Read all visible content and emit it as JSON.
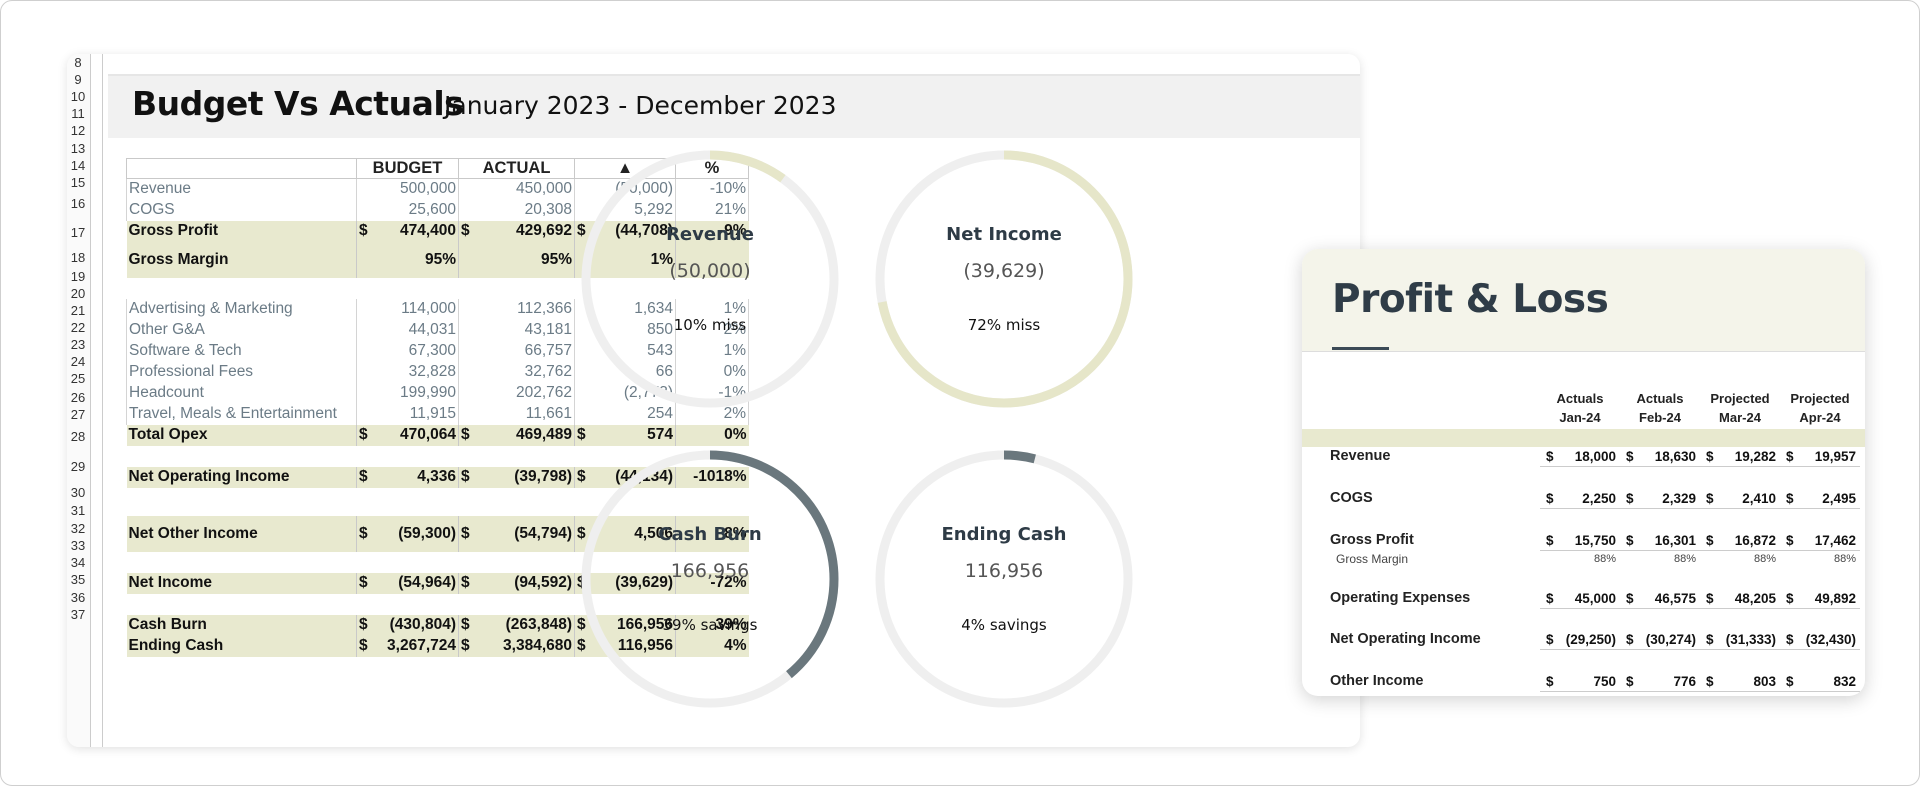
{
  "row_numbers": [
    "8",
    "9",
    "10",
    "11",
    "12",
    "13",
    "14",
    "15",
    "16",
    "17",
    "18",
    "19",
    "20",
    "21",
    "22",
    "23",
    "24",
    "25",
    "26",
    "27",
    "28",
    "29",
    "30",
    "31",
    "32",
    "33",
    "34",
    "35",
    "36",
    "37"
  ],
  "title": "Budget Vs Actuals",
  "subtitle": "January 2023 - December 2023",
  "table": {
    "headers": [
      "BUDGET",
      "ACTUAL",
      "▲",
      "%"
    ],
    "rows": [
      {
        "type": "plain",
        "label": "Revenue",
        "cells": [
          "500,000",
          "450,000",
          "(50,000)",
          "-10%"
        ]
      },
      {
        "type": "plain",
        "label": "COGS",
        "cells": [
          "25,600",
          "20,308",
          "5,292",
          "21%"
        ]
      },
      {
        "type": "bold",
        "label": "Gross Profit",
        "dollar": true,
        "cells": [
          "474,400",
          "429,692",
          "(44,708)",
          "-9%"
        ]
      },
      {
        "type": "bold",
        "label": "Gross Margin",
        "cells": [
          "95%",
          "95%",
          "1%",
          ""
        ]
      },
      {
        "type": "gap"
      },
      {
        "type": "plain",
        "label": "Advertising & Marketing",
        "cells": [
          "114,000",
          "112,366",
          "1,634",
          "1%"
        ]
      },
      {
        "type": "plain",
        "label": "Other G&A",
        "cells": [
          "44,031",
          "43,181",
          "850",
          "2%"
        ]
      },
      {
        "type": "plain",
        "label": "Software & Tech",
        "cells": [
          "67,300",
          "66,757",
          "543",
          "1%"
        ]
      },
      {
        "type": "plain",
        "label": "Professional Fees",
        "cells": [
          "32,828",
          "32,762",
          "66",
          "0%"
        ]
      },
      {
        "type": "plain",
        "label": "Headcount",
        "cells": [
          "199,990",
          "202,762",
          "(2,773)",
          "-1%"
        ]
      },
      {
        "type": "plain",
        "label": "Travel, Meals & Entertainment",
        "cells": [
          "11,915",
          "11,661",
          "254",
          "2%"
        ]
      },
      {
        "type": "bold",
        "label": "Total Opex",
        "dollar": true,
        "cells": [
          "470,064",
          "469,489",
          "574",
          "0%"
        ]
      },
      {
        "type": "gap"
      },
      {
        "type": "bold",
        "label": "Net Operating Income",
        "dollar": true,
        "cells": [
          "4,336",
          "(39,798)",
          "(44,134)",
          "-1018%"
        ]
      },
      {
        "type": "gapt"
      },
      {
        "type": "bold",
        "label": "Net Other Income",
        "dollar": true,
        "cells": [
          "(59,300)",
          "(54,794)",
          "4,506",
          "8%"
        ]
      },
      {
        "type": "gap"
      },
      {
        "type": "bold",
        "label": "Net Income",
        "dollar": true,
        "cells": [
          "(54,964)",
          "(94,592)",
          "(39,629)",
          "-72%"
        ]
      },
      {
        "type": "gap"
      },
      {
        "type": "bold",
        "label": "Cash Burn",
        "dollar": true,
        "cells": [
          "(430,804)",
          "(263,848)",
          "166,956",
          "39%"
        ]
      },
      {
        "type": "bold",
        "label": "Ending Cash",
        "dollar": true,
        "cells": [
          "3,267,724",
          "3,384,680",
          "116,956",
          "4%"
        ]
      }
    ],
    "dollar_sign": "$"
  },
  "rings": [
    {
      "label": "Revenue",
      "value": "(50,000)",
      "caption": "10% miss",
      "fraction": 0.1,
      "color": "#e6e6c9"
    },
    {
      "label": "Net Income",
      "value": "(39,629)",
      "caption": "72% miss",
      "fraction": 0.72,
      "color": "#e6e6c9"
    },
    {
      "label": "Cash Burn",
      "value": "166,956",
      "caption": "39% savings",
      "fraction": 0.39,
      "color": "#6a777d"
    },
    {
      "label": "Ending Cash",
      "value": "116,956",
      "caption": "4% savings",
      "fraction": 0.04,
      "color": "#6a777d"
    }
  ],
  "profit_loss": {
    "title": "Profit & Loss",
    "columns": [
      {
        "line1": "Actuals",
        "line2": "Jan-24"
      },
      {
        "line1": "Actuals",
        "line2": "Feb-24"
      },
      {
        "line1": "Projected",
        "line2": "Mar-24"
      },
      {
        "line1": "Projected",
        "line2": "Apr-24"
      }
    ],
    "rows": [
      {
        "label": "Revenue",
        "cells": [
          "18,000",
          "18,630",
          "19,282",
          "19,957"
        ]
      },
      {
        "label": "COGS",
        "cells": [
          "2,250",
          "2,329",
          "2,410",
          "2,495"
        ]
      },
      {
        "label": "Gross Profit",
        "cells": [
          "15,750",
          "16,301",
          "16,872",
          "17,462"
        ]
      },
      {
        "label": "Gross Margin",
        "small": true,
        "cells": [
          "88%",
          "88%",
          "88%",
          "88%"
        ]
      },
      {
        "label": "Operating Expenses",
        "cells": [
          "45,000",
          "46,575",
          "48,205",
          "49,892"
        ]
      },
      {
        "label": "Net Operating Income",
        "cells": [
          "(29,250)",
          "(30,274)",
          "(31,333)",
          "(32,430)"
        ]
      },
      {
        "label": "Other Income",
        "cells": [
          "750",
          "776",
          "803",
          "832"
        ]
      }
    ]
  }
}
